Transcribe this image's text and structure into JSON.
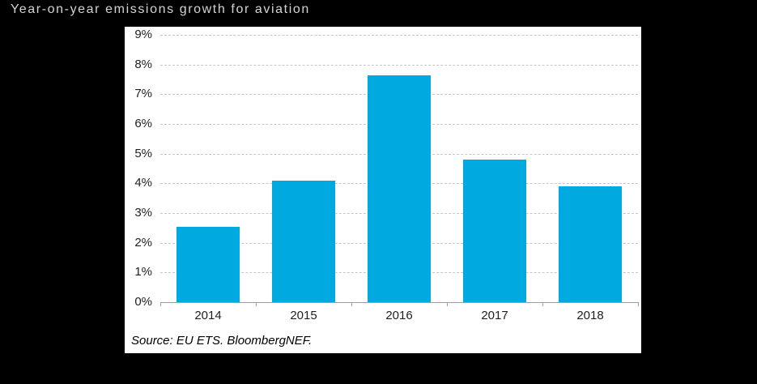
{
  "title": "Year-on-year emissions growth for aviation",
  "source": "Source: EU ETS. BloombergNEF.",
  "colors": {
    "background": "#000000",
    "panel": "#ffffff",
    "bar": "#00a9e0",
    "title_text": "#d4d4d4",
    "gridline": "#c6c6c6",
    "axis_line": "#9d9d9d",
    "tick_label": "#1f1f1f"
  },
  "chart_data": {
    "type": "bar",
    "title": "Year-on-year emissions growth for aviation",
    "categories": [
      "2014",
      "2015",
      "2016",
      "2017",
      "2018"
    ],
    "values": [
      2.55,
      4.1,
      7.65,
      4.8,
      3.9
    ],
    "xlabel": "",
    "ylabel": "",
    "ylim": [
      0,
      9
    ],
    "ytick_step": 1,
    "ytick_suffix": "%",
    "ytick_labels": [
      "0%",
      "1%",
      "2%",
      "3%",
      "4%",
      "5%",
      "6%",
      "7%",
      "8%",
      "9%"
    ],
    "grid": "horizontal-dashed",
    "legend_position": "none",
    "bar_color": "#00a9e0",
    "source": "Source: EU ETS. BloombergNEF."
  }
}
